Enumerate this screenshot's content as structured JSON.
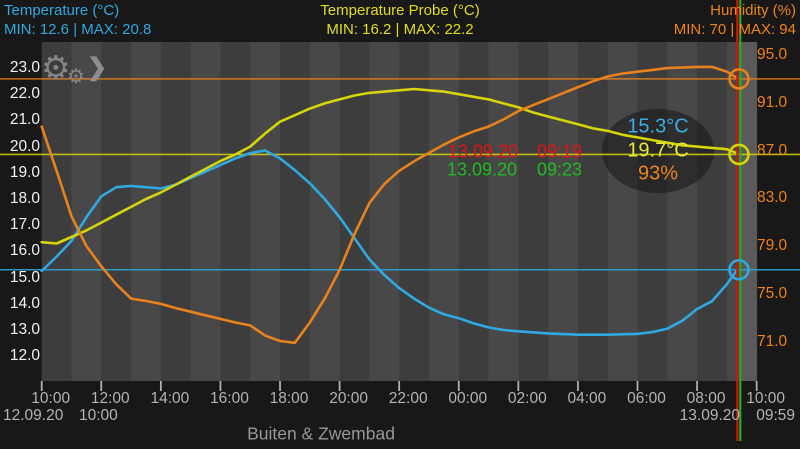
{
  "header": {
    "left": {
      "title": "Temperature (°C)",
      "minmax": "MIN: 12.6 | MAX: 20.8",
      "color": "#2fa9e1"
    },
    "center": {
      "title": "Temperature Probe (°C)",
      "minmax": "MIN: 16.2 | MAX: 22.2",
      "color": "#e3dc1e"
    },
    "right": {
      "title": "Humidity (%)",
      "minmax": "MIN: 70 | MAX: 94",
      "color": "#ef8318"
    }
  },
  "toolbar": {
    "gear_icon": "⚙",
    "gear_icon_small": "⚙",
    "chevron_icon": "❯"
  },
  "footer": {
    "device_name": "Buiten & Zwembad",
    "start_date": "12.09.20",
    "start_time": "10:00",
    "end_date": "13.09.20",
    "end_time": "09:59"
  },
  "chart_data": {
    "type": "line",
    "title": "",
    "x_unit": "hours since 12.09.20 10:00",
    "x_ticks": [
      "10:00",
      "12:00",
      "14:00",
      "16:00",
      "18:00",
      "20:00",
      "22:00",
      "00:00",
      "02:00",
      "04:00",
      "06:00",
      "08:00",
      "10:00"
    ],
    "left_axis": {
      "ticks": [
        "23.0",
        "22.0",
        "21.0",
        "20.0",
        "19.0",
        "18.0",
        "17.0",
        "16.0",
        "15.0",
        "14.0",
        "13.0",
        "12.0"
      ],
      "range": [
        12,
        23
      ]
    },
    "right_axis": {
      "ticks": [
        "95.0",
        "91.0",
        "87.0",
        "83.0",
        "79.0",
        "75.0",
        "71.0"
      ],
      "range": [
        71,
        95
      ]
    },
    "grid": "vertical-hour-stripes",
    "series": [
      {
        "name": "temperature",
        "axis": "left",
        "color": "#2fa9e1",
        "current": 15.3,
        "marker_value": 15.3,
        "points": [
          [
            0,
            15.25
          ],
          [
            0.5,
            15.8
          ],
          [
            1,
            16.4
          ],
          [
            1.5,
            17.3
          ],
          [
            2,
            18.1
          ],
          [
            2.5,
            18.45
          ],
          [
            3,
            18.5
          ],
          [
            3.5,
            18.45
          ],
          [
            4,
            18.4
          ],
          [
            4.5,
            18.55
          ],
          [
            5,
            18.8
          ],
          [
            5.5,
            19.05
          ],
          [
            6,
            19.3
          ],
          [
            6.5,
            19.55
          ],
          [
            7,
            19.75
          ],
          [
            7.5,
            19.85
          ],
          [
            8,
            19.55
          ],
          [
            8.5,
            19.1
          ],
          [
            9,
            18.6
          ],
          [
            9.5,
            18.0
          ],
          [
            10,
            17.3
          ],
          [
            10.5,
            16.5
          ],
          [
            11,
            15.7
          ],
          [
            11.5,
            15.1
          ],
          [
            12,
            14.6
          ],
          [
            12.5,
            14.2
          ],
          [
            13,
            13.85
          ],
          [
            13.5,
            13.6
          ],
          [
            14,
            13.45
          ],
          [
            14.5,
            13.25
          ],
          [
            15,
            13.1
          ],
          [
            15.5,
            13.0
          ],
          [
            16,
            12.95
          ],
          [
            17,
            12.87
          ],
          [
            18,
            12.82
          ],
          [
            19,
            12.82
          ],
          [
            20,
            12.85
          ],
          [
            20.5,
            12.92
          ],
          [
            21,
            13.05
          ],
          [
            21.5,
            13.35
          ],
          [
            22,
            13.8
          ],
          [
            22.5,
            14.1
          ],
          [
            23,
            14.75
          ],
          [
            23.32,
            15.25
          ]
        ]
      },
      {
        "name": "temperature_probe",
        "axis": "left",
        "color": "#d6d40a",
        "current": 19.7,
        "marker_value": 19.7,
        "points": [
          [
            0,
            16.35
          ],
          [
            0.5,
            16.3
          ],
          [
            1,
            16.55
          ],
          [
            1.5,
            16.8
          ],
          [
            2,
            17.1
          ],
          [
            2.5,
            17.4
          ],
          [
            3,
            17.7
          ],
          [
            3.5,
            18.0
          ],
          [
            4,
            18.25
          ],
          [
            4.5,
            18.55
          ],
          [
            5,
            18.85
          ],
          [
            5.5,
            19.15
          ],
          [
            6,
            19.45
          ],
          [
            6.5,
            19.7
          ],
          [
            7,
            20.0
          ],
          [
            7.5,
            20.5
          ],
          [
            8,
            20.95
          ],
          [
            8.5,
            21.2
          ],
          [
            9,
            21.45
          ],
          [
            9.5,
            21.65
          ],
          [
            10,
            21.8
          ],
          [
            10.5,
            21.95
          ],
          [
            11,
            22.05
          ],
          [
            11.5,
            22.1
          ],
          [
            12,
            22.15
          ],
          [
            12.5,
            22.2
          ],
          [
            13,
            22.15
          ],
          [
            13.5,
            22.1
          ],
          [
            14,
            22.0
          ],
          [
            14.5,
            21.9
          ],
          [
            15,
            21.8
          ],
          [
            15.5,
            21.65
          ],
          [
            16,
            21.5
          ],
          [
            16.5,
            21.3
          ],
          [
            17,
            21.15
          ],
          [
            17.5,
            21.0
          ],
          [
            18,
            20.85
          ],
          [
            18.5,
            20.7
          ],
          [
            19,
            20.6
          ],
          [
            19.5,
            20.45
          ],
          [
            20,
            20.35
          ],
          [
            20.5,
            20.25
          ],
          [
            21,
            20.15
          ],
          [
            21.5,
            20.05
          ],
          [
            22,
            20.0
          ],
          [
            22.5,
            19.95
          ],
          [
            23,
            19.9
          ],
          [
            23.32,
            19.75
          ]
        ]
      },
      {
        "name": "humidity",
        "axis": "right",
        "color": "#e9821c",
        "current": 93,
        "marker_value": 93,
        "points": [
          [
            0,
            89.0
          ],
          [
            0.5,
            85.3
          ],
          [
            1,
            81.5
          ],
          [
            1.5,
            79.0
          ],
          [
            2,
            77.3
          ],
          [
            2.5,
            75.8
          ],
          [
            3,
            74.6
          ],
          [
            3.5,
            74.4
          ],
          [
            4,
            74.15
          ],
          [
            4.5,
            73.8
          ],
          [
            5,
            73.5
          ],
          [
            5.5,
            73.2
          ],
          [
            6,
            72.9
          ],
          [
            6.5,
            72.6
          ],
          [
            7,
            72.35
          ],
          [
            7.5,
            71.5
          ],
          [
            8,
            71.05
          ],
          [
            8.5,
            70.9
          ],
          [
            9,
            72.6
          ],
          [
            9.5,
            74.6
          ],
          [
            10,
            77.0
          ],
          [
            10.5,
            80.0
          ],
          [
            11,
            82.6
          ],
          [
            11.5,
            84.2
          ],
          [
            12,
            85.3
          ],
          [
            12.5,
            86.1
          ],
          [
            13,
            86.8
          ],
          [
            13.5,
            87.5
          ],
          [
            14,
            88.1
          ],
          [
            14.5,
            88.6
          ],
          [
            15,
            89.0
          ],
          [
            15.5,
            89.6
          ],
          [
            16,
            90.3
          ],
          [
            16.5,
            90.8
          ],
          [
            17,
            91.3
          ],
          [
            17.5,
            91.8
          ],
          [
            18,
            92.3
          ],
          [
            18.5,
            92.8
          ],
          [
            19,
            93.2
          ],
          [
            19.5,
            93.45
          ],
          [
            20,
            93.6
          ],
          [
            20.5,
            93.75
          ],
          [
            21,
            93.9
          ],
          [
            21.5,
            93.95
          ],
          [
            22,
            94.0
          ],
          [
            22.5,
            94.0
          ],
          [
            23,
            93.6
          ],
          [
            23.32,
            93.1
          ]
        ]
      }
    ],
    "cursors": [
      {
        "name": "cursor-red",
        "color": "#dd0e0e",
        "date": "13.09.20",
        "time": "09:19",
        "x_hours": 23.35
      },
      {
        "name": "cursor-green",
        "color": "#17b517",
        "date": "13.09.20",
        "time": "09:23",
        "x_hours": 23.45
      }
    ],
    "bubble": {
      "values": [
        {
          "text": "15.3°C",
          "color": "#3badе2"
        },
        {
          "text": "19.7°C",
          "color": "#e9e73a"
        },
        {
          "text": "93%",
          "color": "#ef8421"
        }
      ]
    },
    "legend_position": "top",
    "stripe_colors": {
      "dark": "#3d3d3d",
      "light": "#484848",
      "future": "#5a5a5a"
    }
  }
}
